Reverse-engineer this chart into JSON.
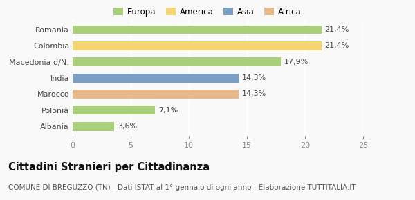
{
  "categories": [
    "Romania",
    "Colombia",
    "Macedonia d/N.",
    "India",
    "Marocco",
    "Polonia",
    "Albania"
  ],
  "values": [
    21.4,
    21.4,
    17.9,
    14.3,
    14.3,
    7.1,
    3.6
  ],
  "labels": [
    "21,4%",
    "21,4%",
    "17,9%",
    "14,3%",
    "14,3%",
    "7,1%",
    "3,6%"
  ],
  "bar_colors": [
    "#aacf7a",
    "#f5d472",
    "#aacf7a",
    "#7b9fc4",
    "#e8b98a",
    "#aacf7a",
    "#aacf7a"
  ],
  "legend_items": [
    {
      "label": "Europa",
      "color": "#aacf7a"
    },
    {
      "label": "America",
      "color": "#f5d472"
    },
    {
      "label": "Asia",
      "color": "#7b9fc4"
    },
    {
      "label": "Africa",
      "color": "#e8b98a"
    }
  ],
  "xlim": [
    0,
    25
  ],
  "xticks": [
    0,
    5,
    10,
    15,
    20,
    25
  ],
  "title": "Cittadini Stranieri per Cittadinanza",
  "subtitle": "COMUNE DI BREGUZZO (TN) - Dati ISTAT al 1° gennaio di ogni anno - Elaborazione TUTTITALIA.IT",
  "background_color": "#f9f9f9",
  "grid_color": "#ffffff",
  "bar_alpha": 1.0,
  "label_fontsize": 8.0,
  "tick_fontsize": 8.0,
  "legend_fontsize": 8.5,
  "title_fontsize": 10.5,
  "subtitle_fontsize": 7.5,
  "bar_height": 0.55
}
